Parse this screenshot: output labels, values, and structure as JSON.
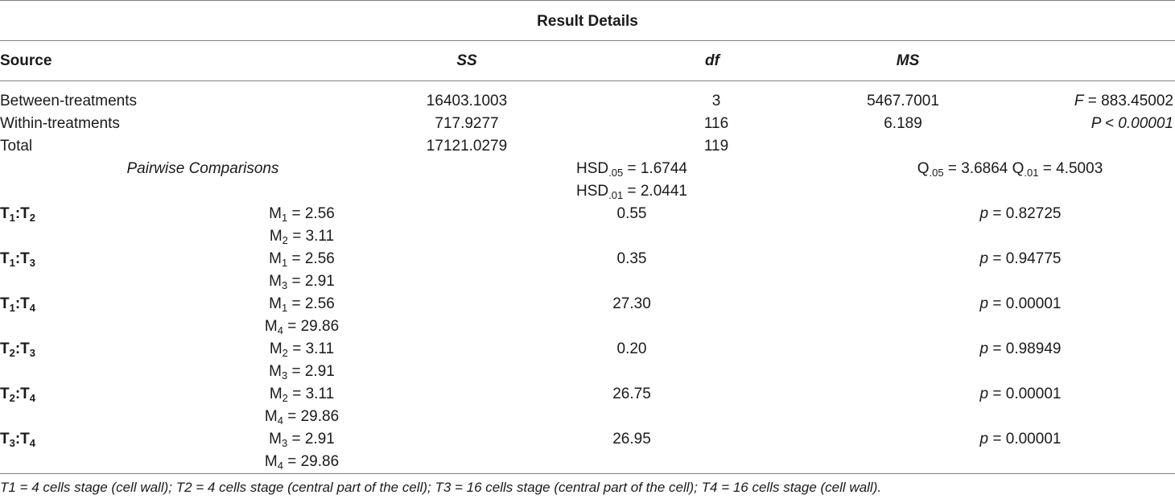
{
  "title": "Result Details",
  "headers": {
    "source": "Source",
    "ss": "SS",
    "df": "df",
    "ms": "MS"
  },
  "anova": [
    {
      "source": "Between-treatments",
      "ss": "16403.1003",
      "df": "3",
      "ms": "5467.7001",
      "stat_label": "F",
      "stat_value": " = 883.45002"
    },
    {
      "source": "Within-treatments",
      "ss": "717.9277",
      "df": "116",
      "ms": "6.189",
      "stat_full": "P < 0.00001"
    },
    {
      "source": "Total",
      "ss": "17121.0279",
      "df": "119"
    }
  ],
  "pairwise": {
    "label": "Pairwise Comparisons",
    "hsd05": {
      "base": "HSD",
      "sub": ".05",
      "value": " = 1.6744"
    },
    "hsd01": {
      "base": "HSD",
      "sub": ".01",
      "value": " = 2.0441"
    },
    "q05": {
      "base": "Q",
      "sub": ".05",
      "value": " = 3.6864 "
    },
    "q01": {
      "base": "Q",
      "sub": ".01",
      "value": " = 4.5003"
    }
  },
  "comparisons": [
    {
      "a": "1",
      "b": "2",
      "ma": "2.56",
      "mb": "3.11",
      "diff": "0.55",
      "p": " = 0.82725"
    },
    {
      "a": "1",
      "b": "3",
      "ma": "2.56",
      "mb": "2.91",
      "diff": "0.35",
      "p": " = 0.94775"
    },
    {
      "a": "1",
      "b": "4",
      "ma": "2.56",
      "mb": "29.86",
      "diff": "27.30",
      "p": " = 0.00001"
    },
    {
      "a": "2",
      "b": "3",
      "ma": "3.11",
      "mb": "2.91",
      "diff": "0.20",
      "p": " = 0.98949"
    },
    {
      "a": "2",
      "b": "4",
      "ma": "3.11",
      "mb": "29.86",
      "diff": "26.75",
      "p": " = 0.00001"
    },
    {
      "a": "3",
      "b": "4",
      "ma": "2.91",
      "mb": "29.86",
      "diff": "26.95",
      "p": " = 0.00001"
    }
  ],
  "letters": {
    "t": "T",
    "m": "M",
    "p": "p",
    "sep": ":",
    "eq": " = "
  },
  "footnote": "T1 = 4 cells stage (cell wall); T2 = 4 cells stage (central part of the cell); T3 = 16 cells stage (central part of the cell); T4 = 16 cells stage (cell wall)."
}
